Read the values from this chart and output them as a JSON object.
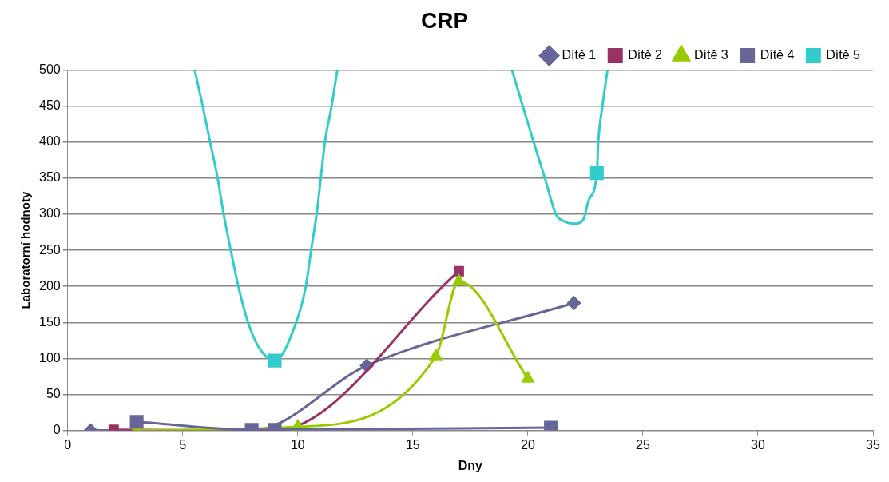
{
  "chart_data": {
    "type": "line",
    "title": "CRP",
    "xlabel": "Dny",
    "ylabel": "Laboratorní hodnoty",
    "xlim": [
      0,
      35
    ],
    "xticks": [
      0,
      5,
      10,
      15,
      20,
      25,
      30,
      35
    ],
    "ylim": [
      0,
      500
    ],
    "yticks": [
      0,
      50,
      100,
      150,
      200,
      250,
      300,
      350,
      400,
      450,
      500
    ],
    "grid": "y",
    "legend": "top right",
    "series": [
      {
        "name": "Dítě 1",
        "color": "#666699",
        "marker": "diamond",
        "x": [
          1,
          8,
          13,
          22
        ],
        "values": [
          0,
          0,
          90,
          177
        ]
      },
      {
        "name": "Dítě 2",
        "color": "#993366",
        "marker": "square",
        "x": [
          2,
          9,
          17
        ],
        "values": [
          1,
          0,
          221
        ]
      },
      {
        "name": "Dítě 3",
        "color": "#99cc00",
        "marker": "triangle",
        "x": [
          3,
          10,
          16,
          17,
          20
        ],
        "values": [
          0,
          5,
          103,
          207,
          72
        ]
      },
      {
        "name": "Dítě 4",
        "color": "#666699",
        "marker": "square",
        "x": [
          3,
          8,
          9,
          21
        ],
        "values": [
          12,
          1,
          1,
          4
        ]
      },
      {
        "name": "Dítě 5",
        "type": "scatter",
        "color": "#33cccc",
        "marker": "square",
        "x": [
          9,
          23
        ],
        "values": [
          97,
          357
        ]
      },
      {
        "color": "#33cccc",
        "marker": "none",
        "x": [
          5.52,
          5.87,
          6.19,
          6.52,
          6.78,
          7.09,
          7.42,
          7.84,
          8.32,
          9,
          9.93,
          10.35,
          10.58,
          10.82,
          11.0,
          11.18,
          11.47,
          11.72
        ],
        "values": [
          500,
          450,
          400,
          350,
          300,
          250,
          200,
          150,
          115,
          97,
          150,
          200,
          250,
          300,
          350,
          400,
          450,
          500
        ]
      },
      {
        "color": "#33cccc",
        "marker": "none",
        "x": [
          19.31,
          19.78,
          20.25,
          20.74,
          21.22,
          21.58,
          22.05,
          22.4,
          22.65,
          23,
          23.06,
          23.24,
          23.46
        ],
        "values": [
          500,
          450,
          400,
          350,
          300,
          290,
          287,
          292,
          320,
          357,
          400,
          450,
          500
        ]
      }
    ]
  }
}
